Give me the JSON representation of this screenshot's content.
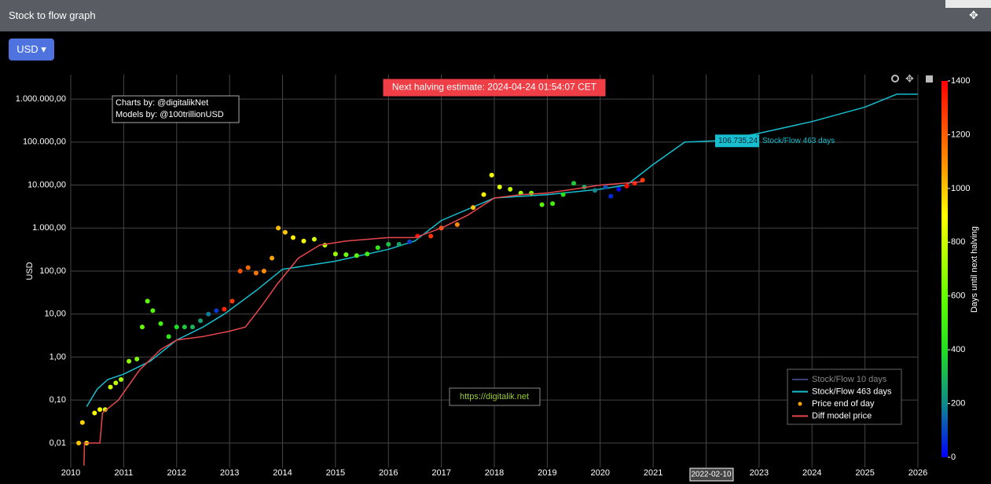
{
  "header": {
    "title": "Stock to flow graph"
  },
  "currency_button": "USD",
  "chart_data": {
    "type": "scatter",
    "ylabel": "USD",
    "log_y": true,
    "grid": true,
    "xlim": [
      2010,
      2026
    ],
    "xticks": [
      2010,
      2011,
      2012,
      2013,
      2014,
      2015,
      2016,
      2017,
      2018,
      2019,
      2020,
      2021,
      2022,
      2023,
      2024,
      2025,
      2026
    ],
    "ylim": [
      0.0027,
      3700000
    ],
    "yticks": [
      {
        "value": 0.01,
        "label": "0,01"
      },
      {
        "value": 0.1,
        "label": "0,10"
      },
      {
        "value": 1,
        "label": "1,00"
      },
      {
        "value": 10,
        "label": "10,00"
      },
      {
        "value": 100,
        "label": "100,00"
      },
      {
        "value": 1000,
        "label": "1.000,00"
      },
      {
        "value": 10000,
        "label": "10.000,00"
      },
      {
        "value": 100000,
        "label": "100.000,00"
      },
      {
        "value": 1000000,
        "label": "1.000.000,00"
      }
    ],
    "annotations": {
      "halving": "Next halving estimate: 2024-04-24 01:54:07 CET",
      "charts_by": "Charts by: @digitalikNet",
      "models_by": "Models by: @100trillionUSD",
      "url": "https://digitalik.net"
    },
    "series": [
      {
        "name": "Stock/Flow 10 days",
        "color": "#3a3f7a",
        "visible": false
      },
      {
        "name": "Stock/Flow 463 days",
        "color": "#17becf",
        "mode": "line",
        "x": [
          2010.3,
          2010.5,
          2010.7,
          2011.0,
          2011.5,
          2012.0,
          2012.5,
          2012.9,
          2013.5,
          2014.0,
          2014.2,
          2015.0,
          2016.0,
          2016.5,
          2017.0,
          2018.0,
          2019.0,
          2020.0,
          2020.5,
          2021.0,
          2021.6,
          2022.17,
          2022.3,
          2023.0,
          2024.0,
          2025.0,
          2025.6,
          2026.0
        ],
        "values": [
          0.07,
          0.18,
          0.3,
          0.4,
          0.8,
          2.5,
          5,
          10,
          35,
          110,
          120,
          170,
          320,
          500,
          1500,
          5000,
          6000,
          8000,
          10000,
          30000,
          100000,
          106735.24,
          110000,
          160000,
          300000,
          650000,
          1300000,
          1300000
        ]
      },
      {
        "name": "Price end of day",
        "color": "#ffa500",
        "mode": "markers",
        "x": [
          2010.15,
          2010.22,
          2010.3,
          2010.45,
          2010.55,
          2010.65,
          2010.75,
          2010.85,
          2010.95,
          2011.1,
          2011.25,
          2011.35,
          2011.45,
          2011.55,
          2011.7,
          2011.85,
          2012.0,
          2012.15,
          2012.3,
          2012.45,
          2012.6,
          2012.75,
          2012.9,
          2013.05,
          2013.2,
          2013.35,
          2013.5,
          2013.65,
          2013.8,
          2013.92,
          2014.05,
          2014.2,
          2014.4,
          2014.6,
          2014.8,
          2015.0,
          2015.2,
          2015.4,
          2015.6,
          2015.8,
          2016.0,
          2016.2,
          2016.4,
          2016.55,
          2016.8,
          2017.0,
          2017.3,
          2017.6,
          2017.8,
          2017.95,
          2018.1,
          2018.3,
          2018.5,
          2018.7,
          2018.9,
          2019.1,
          2019.3,
          2019.5,
          2019.7,
          2019.9,
          2020.1,
          2020.2,
          2020.35,
          2020.5,
          2020.65,
          2020.8
        ],
        "values": [
          0.01,
          0.03,
          0.01,
          0.05,
          0.06,
          0.06,
          0.2,
          0.25,
          0.3,
          0.8,
          0.9,
          5,
          20,
          12,
          6,
          3,
          5,
          5,
          5,
          7,
          10,
          12,
          13,
          20,
          100,
          120,
          90,
          100,
          200,
          1000,
          800,
          600,
          500,
          550,
          400,
          250,
          240,
          230,
          250,
          350,
          420,
          420,
          480,
          650,
          650,
          1000,
          1200,
          3000,
          6000,
          17000,
          9000,
          8000,
          6500,
          6500,
          3500,
          3700,
          6000,
          11000,
          9000,
          7500,
          9000,
          5500,
          8000,
          9500,
          11000,
          13000
        ],
        "days": [
          1000,
          980,
          950,
          900,
          880,
          820,
          800,
          770,
          720,
          680,
          640,
          600,
          580,
          550,
          500,
          450,
          400,
          350,
          300,
          250,
          180,
          80,
          1320,
          1280,
          1220,
          1180,
          1150,
          1100,
          1060,
          1020,
          1000,
          930,
          880,
          820,
          750,
          700,
          620,
          560,
          500,
          450,
          330,
          260,
          100,
          1380,
          1300,
          1200,
          1100,
          1000,
          920,
          880,
          830,
          780,
          700,
          640,
          560,
          500,
          420,
          350,
          280,
          200,
          120,
          60,
          20,
          1380,
          1330,
          1280
        ]
      },
      {
        "name": "Diff model price",
        "color": "#e8474e",
        "mode": "line",
        "x": [
          2010.25,
          2010.26,
          2010.55,
          2010.6,
          2010.9,
          2011.3,
          2011.7,
          2012.0,
          2012.5,
          2013.0,
          2013.3,
          2013.6,
          2013.9,
          2014.3,
          2014.7,
          2015.2,
          2016.0,
          2016.5,
          2017.0,
          2017.5,
          2018.0,
          2018.5,
          2019.0,
          2019.5,
          2020.0,
          2020.8
        ],
        "values": [
          0.003,
          0.01,
          0.01,
          0.05,
          0.1,
          0.5,
          1.5,
          2.5,
          3,
          4,
          5,
          15,
          50,
          200,
          400,
          500,
          600,
          600,
          1000,
          2000,
          5000,
          6000,
          6500,
          8000,
          10000,
          12000
        ]
      }
    ],
    "legend": "bottom-right",
    "hover": {
      "value_label": "106.735,24",
      "x_label": "2022-02-10"
    },
    "colorbar": {
      "title": "Days until next halving",
      "lim": [
        0,
        1400
      ],
      "ticks": [
        0,
        200,
        400,
        600,
        800,
        1000,
        1200,
        1400
      ],
      "colorscale": [
        [
          0,
          "#0000ff"
        ],
        [
          200,
          "#108a8a"
        ],
        [
          400,
          "#22dd22"
        ],
        [
          600,
          "#66ff00"
        ],
        [
          900,
          "#ffff00"
        ],
        [
          1100,
          "#ff8c00"
        ],
        [
          1400,
          "#ff0000"
        ]
      ]
    }
  }
}
